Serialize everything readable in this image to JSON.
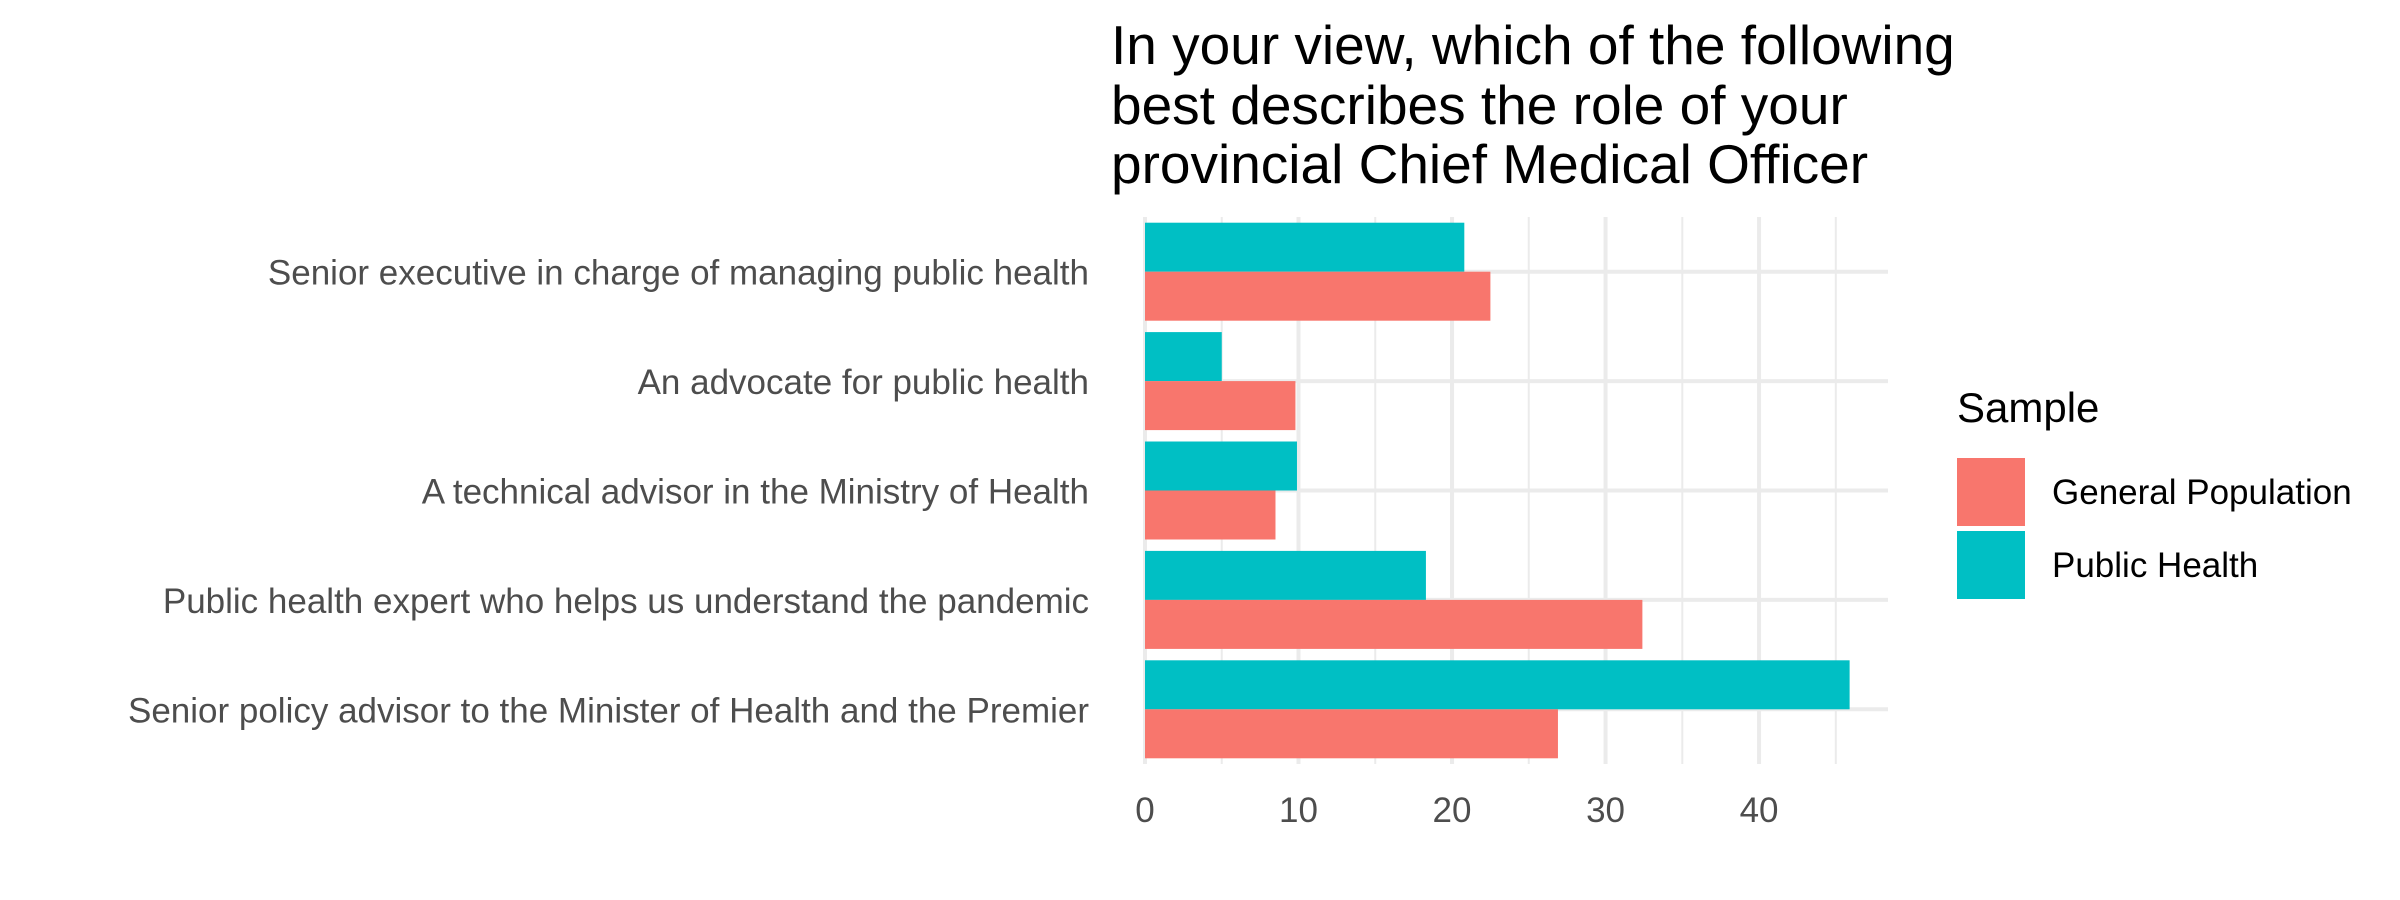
{
  "chart_data": {
    "type": "bar",
    "orientation": "horizontal",
    "title": "In your view, which of the following best describes the role of your provincial Chief Medical Officer",
    "title_lines": [
      "In your view, which of the following",
      "best describes the role of your",
      "provincial Chief Medical Officer"
    ],
    "xlabel": "",
    "ylabel": "",
    "categories": [
      "Senior executive in charge of managing public health",
      "An advocate for public health",
      "A technical advisor in the Ministry of Health",
      "Public health expert who helps us understand the pandemic",
      "Senior policy advisor to the Minister of Health and the Premier"
    ],
    "series": [
      {
        "name": "General Population",
        "color": "#F8766D",
        "values": [
          22.5,
          9.8,
          8.5,
          32.4,
          26.9
        ]
      },
      {
        "name": "Public Health",
        "color": "#00BFC4",
        "values": [
          20.8,
          5.0,
          9.9,
          18.3,
          45.9
        ]
      }
    ],
    "xlim": [
      0,
      48.4
    ],
    "x_ticks": [
      0,
      10,
      20,
      30,
      40
    ],
    "grid": true,
    "legend": {
      "title": "Sample",
      "position": "right"
    }
  }
}
